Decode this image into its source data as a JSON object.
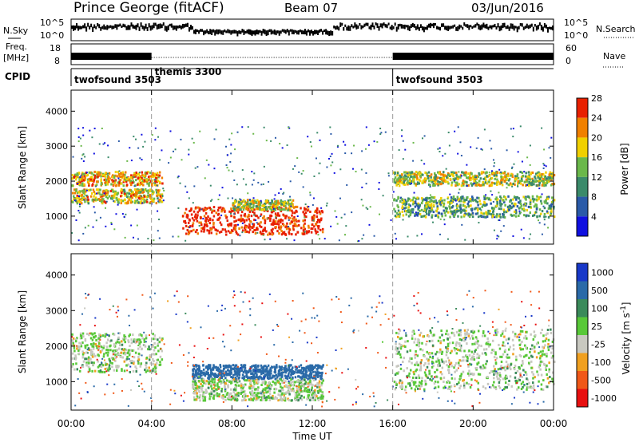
{
  "header": {
    "station": "Prince George (fitACF)",
    "beam": "Beam 07",
    "date": "03/Jun/2016"
  },
  "status_panels": {
    "nsky_label": "N.Sky",
    "nsearch_label": "N.Search",
    "noise_ticks_left": [
      "10^5",
      "10^0"
    ],
    "noise_ticks_right": [
      "10^5",
      "10^0"
    ],
    "freq_label": [
      "Freq.",
      "[MHz]"
    ],
    "freq_ticks": [
      "18",
      "8"
    ],
    "nave_label": "Nave",
    "nave_ticks": [
      "60",
      "0"
    ],
    "cpid_label": "CPID",
    "cpid_segments": [
      {
        "name": "twofsound 3503",
        "start_h": 0,
        "end_h": 4
      },
      {
        "name": "themis 3300",
        "start_h": 4,
        "end_h": 16
      },
      {
        "name": "twofsound 3503",
        "start_h": 16,
        "end_h": 24
      }
    ]
  },
  "chart_data": [
    {
      "type": "heatmap",
      "name": "power",
      "ylabel": "Slant Range [km]",
      "yticks": [
        "1000",
        "2000",
        "3000",
        "4000"
      ],
      "ylim": [
        200,
        4600
      ],
      "colorbar_label": "Power [dB]",
      "colorbar_ticks": [
        "4",
        "8",
        "12",
        "16",
        "20",
        "24",
        "28"
      ],
      "colorbar_colors": [
        "#1010e0",
        "#2a5aa8",
        "#3a8a6a",
        "#6ab84a",
        "#f0d000",
        "#f08000",
        "#e82000"
      ],
      "echo_bands_km": [
        {
          "start_h": 0.0,
          "end_h": 4.5,
          "range_km": [
            1900,
            2300
          ],
          "power_db": 20
        },
        {
          "start_h": 0.0,
          "end_h": 4.5,
          "range_km": [
            1400,
            1800
          ],
          "power_db": 18
        },
        {
          "start_h": 5.5,
          "end_h": 12.5,
          "range_km": [
            500,
            1300
          ],
          "power_db": 28
        },
        {
          "start_h": 8.0,
          "end_h": 11.0,
          "range_km": [
            1200,
            1500
          ],
          "power_db": 16
        },
        {
          "start_h": 16.0,
          "end_h": 24.0,
          "range_km": [
            1900,
            2300
          ],
          "power_db": 16
        },
        {
          "start_h": 16.0,
          "end_h": 24.0,
          "range_km": [
            1000,
            1600
          ],
          "power_db": 12
        }
      ]
    },
    {
      "type": "heatmap",
      "name": "velocity",
      "ylabel": "Slant Range [km]",
      "yticks": [
        "1000",
        "2000",
        "3000",
        "4000"
      ],
      "ylim": [
        200,
        4600
      ],
      "colorbar_label": "Velocity [m s^-1]",
      "colorbar_ticks": [
        "1000",
        "500",
        "100",
        "25",
        "-25",
        "-100",
        "-500",
        "-1000"
      ],
      "colorbar_colors": [
        "#1838c8",
        "#2a6aa8",
        "#3a8a5a",
        "#58c838",
        "#c8c8c0",
        "#f0a020",
        "#f05818",
        "#e81010"
      ],
      "echo_bands_km": [
        {
          "start_h": 0.0,
          "end_h": 4.5,
          "range_km": [
            1300,
            2400
          ],
          "velocity": 0
        },
        {
          "start_h": 6.0,
          "end_h": 12.5,
          "range_km": [
            1100,
            1500
          ],
          "velocity": 150
        },
        {
          "start_h": 6.0,
          "end_h": 12.5,
          "range_km": [
            500,
            1100
          ],
          "velocity": 0
        },
        {
          "start_h": 16.0,
          "end_h": 24.0,
          "range_km": [
            800,
            2500
          ],
          "velocity": 0
        }
      ]
    }
  ],
  "xaxis": {
    "label": "Time UT",
    "ticks": [
      "00:00",
      "04:00",
      "08:00",
      "12:00",
      "16:00",
      "20:00",
      "00:00"
    ],
    "xlim_h": [
      0,
      24
    ]
  }
}
